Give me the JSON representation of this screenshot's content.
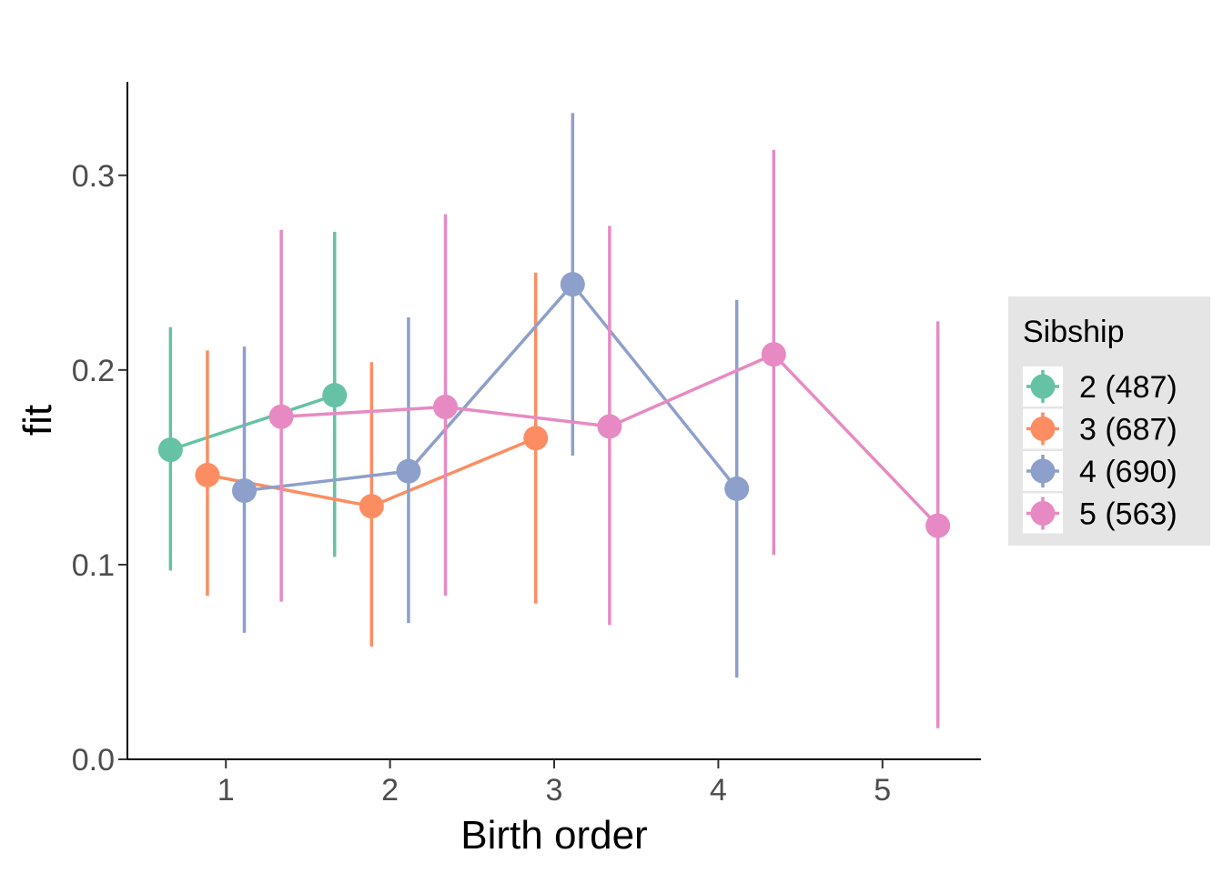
{
  "chart_data": {
    "type": "line",
    "xlabel": "Birth order",
    "ylabel": "fit",
    "x_ticks": [
      1,
      2,
      3,
      4,
      5
    ],
    "y_ticks": [
      "0.0",
      "0.1",
      "0.2",
      "0.3"
    ],
    "xlim": [
      0.4,
      5.6
    ],
    "ylim": [
      0,
      0.348
    ],
    "dodge": 0.9,
    "grid": false,
    "legend": {
      "title": "Sibship",
      "placement": "right",
      "background": "#e5e5e5"
    },
    "series": [
      {
        "name": "2 (487)",
        "color": "#66c2a5",
        "points": [
          {
            "x": 1,
            "y": 0.159,
            "lower": 0.097,
            "upper": 0.222
          },
          {
            "x": 2,
            "y": 0.187,
            "lower": 0.104,
            "upper": 0.271
          }
        ]
      },
      {
        "name": "3 (687)",
        "color": "#fc8d62",
        "points": [
          {
            "x": 1,
            "y": 0.146,
            "lower": 0.084,
            "upper": 0.21
          },
          {
            "x": 2,
            "y": 0.13,
            "lower": 0.058,
            "upper": 0.204
          },
          {
            "x": 3,
            "y": 0.165,
            "lower": 0.08,
            "upper": 0.25
          }
        ]
      },
      {
        "name": "4 (690)",
        "color": "#8da0cb",
        "points": [
          {
            "x": 1,
            "y": 0.138,
            "lower": 0.065,
            "upper": 0.212
          },
          {
            "x": 2,
            "y": 0.148,
            "lower": 0.07,
            "upper": 0.227
          },
          {
            "x": 3,
            "y": 0.244,
            "lower": 0.156,
            "upper": 0.332
          },
          {
            "x": 4,
            "y": 0.139,
            "lower": 0.042,
            "upper": 0.236
          }
        ]
      },
      {
        "name": "5 (563)",
        "color": "#e78ac3",
        "points": [
          {
            "x": 1,
            "y": 0.176,
            "lower": 0.081,
            "upper": 0.272
          },
          {
            "x": 2,
            "y": 0.181,
            "lower": 0.084,
            "upper": 0.28
          },
          {
            "x": 3,
            "y": 0.171,
            "lower": 0.069,
            "upper": 0.274
          },
          {
            "x": 4,
            "y": 0.208,
            "lower": 0.105,
            "upper": 0.313
          },
          {
            "x": 5,
            "y": 0.12,
            "lower": 0.016,
            "upper": 0.225
          }
        ]
      }
    ]
  }
}
